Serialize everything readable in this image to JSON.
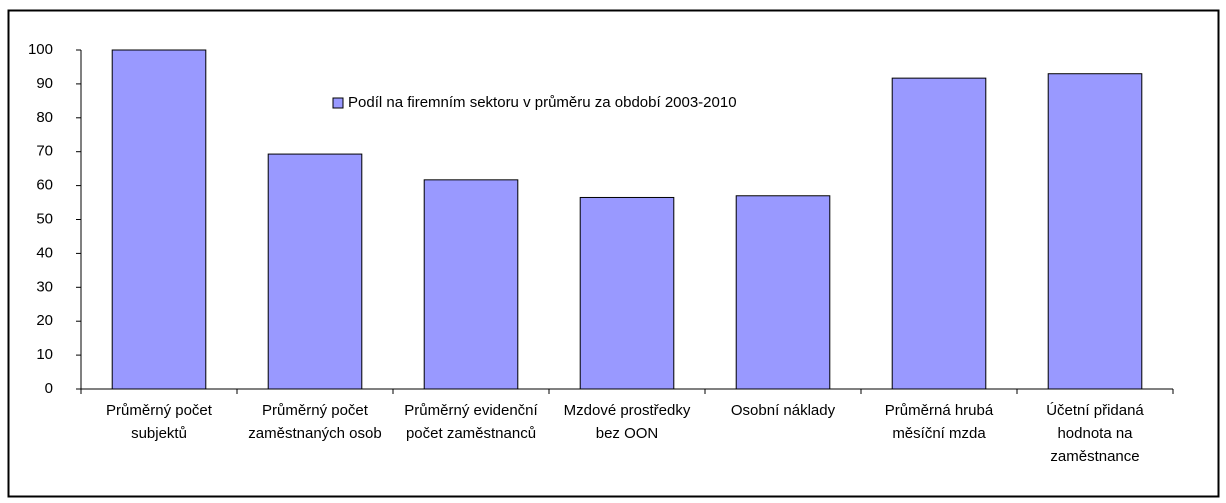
{
  "chart_data": {
    "type": "bar",
    "categories": [
      "Průměrný počet subjektů",
      "Průměrný počet zaměstnaných osob",
      "Průměrný evidenční počet zaměstnanců",
      "Mzdové prostředky bez OON",
      "Osobní náklady",
      "Průměrná hrubá měsíční mzda",
      "Účetní přidaná hodnota na zaměstnance"
    ],
    "series": [
      {
        "name": "Podíl na firemním sektoru v průměru za období 2003-2010",
        "color": "#9999ff",
        "values": [
          100,
          69.3,
          61.7,
          56.5,
          57,
          91.7,
          93
        ]
      }
    ],
    "ylim": [
      0,
      100
    ],
    "yticks": [
      0,
      10,
      20,
      30,
      40,
      50,
      60,
      70,
      80,
      90,
      100
    ],
    "legend": "top"
  }
}
